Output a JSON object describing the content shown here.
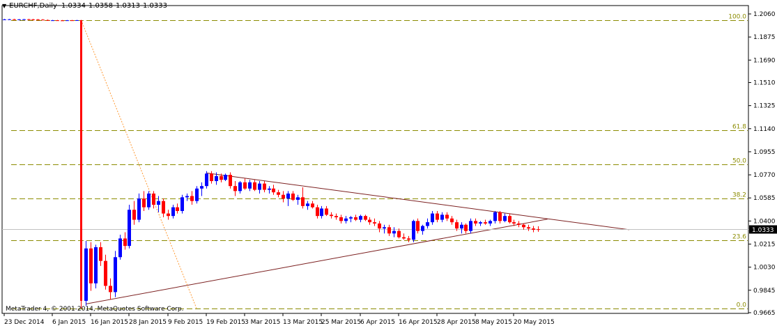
{
  "header": {
    "symbol": "EURCHF,Daily",
    "open": "1.0334",
    "high": "1.0358",
    "low": "1.0313",
    "close": "1.0333"
  },
  "copyright": "MetaTrader 4, © 2001-2014, MetaQuotes Software Corp.",
  "current_price": "1.0333",
  "colors": {
    "bull": "#0000ff",
    "bear": "#ff0000",
    "fib": "#8b8b00",
    "trendline": "#7b1f1f",
    "retrace": "#ff9933",
    "grid": "#000000",
    "current": "#000000"
  },
  "chart_data": {
    "type": "candlestick",
    "symbol": "EURCHF",
    "timeframe": "Daily",
    "ylim": [
      0.9665,
      1.206
    ],
    "y_ticks": [
      "1.2060",
      "1.1875",
      "1.1690",
      "1.1510",
      "1.1325",
      "1.1140",
      "1.0955",
      "1.0770",
      "1.0585",
      "1.0400",
      "1.0215",
      "1.0030",
      "0.9845",
      "0.9665"
    ],
    "x_ticks": [
      "23 Dec 2014",
      "6 Jan 2015",
      "16 Jan 2015",
      "28 Jan 2015",
      "9 Feb 2015",
      "19 Feb 2015",
      "3 Mar 2015",
      "13 Mar 2015",
      "25 Mar 2015",
      "6 Apr 2015",
      "16 Apr 2015",
      "28 Apr 2015",
      "8 May 2015",
      "20 May 2015"
    ],
    "fibonacci": {
      "high": 1.201,
      "low": 0.97,
      "levels": [
        {
          "label": "100.0",
          "value": 1.201
        },
        {
          "label": "61.8",
          "value": 1.1127
        },
        {
          "label": "50.0",
          "value": 1.0855
        },
        {
          "label": "38.2",
          "value": 1.0583
        },
        {
          "label": "23.6",
          "value": 1.0245
        },
        {
          "label": "0.0",
          "value": 0.97
        }
      ]
    },
    "candles": [
      {
        "o": 1.2015,
        "h": 1.202,
        "l": 1.2012,
        "c": 1.2016
      },
      {
        "o": 1.2016,
        "h": 1.202,
        "l": 1.2013,
        "c": 1.2017
      },
      {
        "o": 1.2017,
        "h": 1.2021,
        "l": 1.2014,
        "c": 1.2015
      },
      {
        "o": 1.2015,
        "h": 1.2019,
        "l": 1.2012,
        "c": 1.2016
      },
      {
        "o": 1.2016,
        "h": 1.202,
        "l": 1.2013,
        "c": 1.2017
      },
      {
        "o": 1.2017,
        "h": 1.2021,
        "l": 1.2014,
        "c": 1.2016
      },
      {
        "o": 1.2016,
        "h": 1.202,
        "l": 1.2012,
        "c": 1.2015
      },
      {
        "o": 1.2015,
        "h": 1.2019,
        "l": 1.2011,
        "c": 1.2014
      },
      {
        "o": 1.2014,
        "h": 1.2018,
        "l": 1.2009,
        "c": 1.2011
      },
      {
        "o": 1.2011,
        "h": 1.2015,
        "l": 1.2006,
        "c": 1.2008
      },
      {
        "o": 1.2008,
        "h": 1.2012,
        "l": 1.2005,
        "c": 1.2009
      },
      {
        "o": 1.2009,
        "h": 1.2012,
        "l": 1.2006,
        "c": 1.2008
      },
      {
        "o": 1.2008,
        "h": 1.2011,
        "l": 1.2005,
        "c": 1.2007
      },
      {
        "o": 1.2007,
        "h": 1.2011,
        "l": 1.2005,
        "c": 1.2009
      },
      {
        "o": 1.2009,
        "h": 1.2012,
        "l": 1.2006,
        "c": 1.2008
      },
      {
        "o": 1.2008,
        "h": 1.2012,
        "l": 1.2005,
        "c": 1.201
      },
      {
        "o": 1.201,
        "h": 1.2012,
        "l": 0.97,
        "c": 0.976
      },
      {
        "o": 0.976,
        "h": 1.024,
        "l": 0.972,
        "c": 1.018
      },
      {
        "o": 1.018,
        "h": 1.023,
        "l": 0.984,
        "c": 0.99
      },
      {
        "o": 0.99,
        "h": 1.021,
        "l": 0.986,
        "c": 1.019
      },
      {
        "o": 1.019,
        "h": 1.023,
        "l": 1.004,
        "c": 1.008
      },
      {
        "o": 1.008,
        "h": 1.013,
        "l": 0.985,
        "c": 0.988
      },
      {
        "o": 0.988,
        "h": 0.994,
        "l": 0.977,
        "c": 0.983
      },
      {
        "o": 0.983,
        "h": 1.016,
        "l": 0.979,
        "c": 1.011
      },
      {
        "o": 1.011,
        "h": 1.029,
        "l": 1.009,
        "c": 1.026
      },
      {
        "o": 1.026,
        "h": 1.031,
        "l": 1.017,
        "c": 1.02
      },
      {
        "o": 1.02,
        "h": 1.053,
        "l": 1.018,
        "c": 1.049
      },
      {
        "o": 1.049,
        "h": 1.056,
        "l": 1.037,
        "c": 1.041
      },
      {
        "o": 1.041,
        "h": 1.062,
        "l": 1.039,
        "c": 1.058
      },
      {
        "o": 1.058,
        "h": 1.064,
        "l": 1.048,
        "c": 1.051
      },
      {
        "o": 1.051,
        "h": 1.064,
        "l": 1.049,
        "c": 1.062
      },
      {
        "o": 1.062,
        "h": 1.064,
        "l": 1.05,
        "c": 1.053
      },
      {
        "o": 1.053,
        "h": 1.06,
        "l": 1.047,
        "c": 1.056
      },
      {
        "o": 1.056,
        "h": 1.058,
        "l": 1.043,
        "c": 1.046
      },
      {
        "o": 1.046,
        "h": 1.049,
        "l": 1.041,
        "c": 1.044
      },
      {
        "o": 1.044,
        "h": 1.053,
        "l": 1.042,
        "c": 1.051
      },
      {
        "o": 1.051,
        "h": 1.054,
        "l": 1.046,
        "c": 1.048
      },
      {
        "o": 1.048,
        "h": 1.061,
        "l": 1.046,
        "c": 1.059
      },
      {
        "o": 1.059,
        "h": 1.062,
        "l": 1.056,
        "c": 1.06
      },
      {
        "o": 1.06,
        "h": 1.064,
        "l": 1.053,
        "c": 1.056
      },
      {
        "o": 1.056,
        "h": 1.068,
        "l": 1.054,
        "c": 1.066
      },
      {
        "o": 1.066,
        "h": 1.071,
        "l": 1.06,
        "c": 1.068
      },
      {
        "o": 1.068,
        "h": 1.08,
        "l": 1.066,
        "c": 1.078
      },
      {
        "o": 1.078,
        "h": 1.08,
        "l": 1.07,
        "c": 1.072
      },
      {
        "o": 1.072,
        "h": 1.079,
        "l": 1.069,
        "c": 1.076
      },
      {
        "o": 1.076,
        "h": 1.078,
        "l": 1.071,
        "c": 1.073
      },
      {
        "o": 1.073,
        "h": 1.078,
        "l": 1.072,
        "c": 1.077
      },
      {
        "o": 1.077,
        "h": 1.079,
        "l": 1.066,
        "c": 1.068
      },
      {
        "o": 1.068,
        "h": 1.072,
        "l": 1.06,
        "c": 1.064
      },
      {
        "o": 1.064,
        "h": 1.072,
        "l": 1.062,
        "c": 1.071
      },
      {
        "o": 1.071,
        "h": 1.074,
        "l": 1.065,
        "c": 1.066
      },
      {
        "o": 1.066,
        "h": 1.073,
        "l": 1.064,
        "c": 1.071
      },
      {
        "o": 1.071,
        "h": 1.073,
        "l": 1.064,
        "c": 1.065
      },
      {
        "o": 1.065,
        "h": 1.072,
        "l": 1.062,
        "c": 1.07
      },
      {
        "o": 1.07,
        "h": 1.072,
        "l": 1.063,
        "c": 1.065
      },
      {
        "o": 1.065,
        "h": 1.068,
        "l": 1.062,
        "c": 1.066
      },
      {
        "o": 1.066,
        "h": 1.069,
        "l": 1.061,
        "c": 1.063
      },
      {
        "o": 1.063,
        "h": 1.065,
        "l": 1.059,
        "c": 1.061
      },
      {
        "o": 1.061,
        "h": 1.064,
        "l": 1.055,
        "c": 1.058
      },
      {
        "o": 1.058,
        "h": 1.064,
        "l": 1.052,
        "c": 1.062
      },
      {
        "o": 1.062,
        "h": 1.064,
        "l": 1.056,
        "c": 1.057
      },
      {
        "o": 1.057,
        "h": 1.061,
        "l": 1.053,
        "c": 1.059
      },
      {
        "o": 1.059,
        "h": 1.067,
        "l": 1.05,
        "c": 1.052
      },
      {
        "o": 1.052,
        "h": 1.056,
        "l": 1.049,
        "c": 1.054
      },
      {
        "o": 1.054,
        "h": 1.056,
        "l": 1.05,
        "c": 1.051
      },
      {
        "o": 1.051,
        "h": 1.053,
        "l": 1.042,
        "c": 1.044
      },
      {
        "o": 1.044,
        "h": 1.052,
        "l": 1.042,
        "c": 1.05
      },
      {
        "o": 1.05,
        "h": 1.052,
        "l": 1.044,
        "c": 1.045
      },
      {
        "o": 1.045,
        "h": 1.047,
        "l": 1.042,
        "c": 1.044
      },
      {
        "o": 1.044,
        "h": 1.046,
        "l": 1.041,
        "c": 1.043
      },
      {
        "o": 1.043,
        "h": 1.045,
        "l": 1.038,
        "c": 1.04
      },
      {
        "o": 1.04,
        "h": 1.044,
        "l": 1.038,
        "c": 1.042
      },
      {
        "o": 1.042,
        "h": 1.044,
        "l": 1.039,
        "c": 1.043
      },
      {
        "o": 1.043,
        "h": 1.045,
        "l": 1.04,
        "c": 1.041
      },
      {
        "o": 1.041,
        "h": 1.045,
        "l": 1.039,
        "c": 1.044
      },
      {
        "o": 1.044,
        "h": 1.045,
        "l": 1.04,
        "c": 1.041
      },
      {
        "o": 1.041,
        "h": 1.043,
        "l": 1.037,
        "c": 1.039
      },
      {
        "o": 1.039,
        "h": 1.042,
        "l": 1.036,
        "c": 1.038
      },
      {
        "o": 1.038,
        "h": 1.04,
        "l": 1.031,
        "c": 1.034
      },
      {
        "o": 1.034,
        "h": 1.037,
        "l": 1.03,
        "c": 1.035
      },
      {
        "o": 1.035,
        "h": 1.037,
        "l": 1.028,
        "c": 1.03
      },
      {
        "o": 1.03,
        "h": 1.035,
        "l": 1.027,
        "c": 1.032
      },
      {
        "o": 1.032,
        "h": 1.034,
        "l": 1.026,
        "c": 1.027
      },
      {
        "o": 1.027,
        "h": 1.03,
        "l": 1.025,
        "c": 1.026
      },
      {
        "o": 1.026,
        "h": 1.028,
        "l": 1.023,
        "c": 1.025
      },
      {
        "o": 1.025,
        "h": 1.041,
        "l": 1.023,
        "c": 1.04
      },
      {
        "o": 1.04,
        "h": 1.042,
        "l": 1.03,
        "c": 1.032
      },
      {
        "o": 1.032,
        "h": 1.037,
        "l": 1.029,
        "c": 1.036
      },
      {
        "o": 1.036,
        "h": 1.042,
        "l": 1.034,
        "c": 1.039
      },
      {
        "o": 1.039,
        "h": 1.048,
        "l": 1.037,
        "c": 1.046
      },
      {
        "o": 1.046,
        "h": 1.048,
        "l": 1.039,
        "c": 1.041
      },
      {
        "o": 1.041,
        "h": 1.047,
        "l": 1.039,
        "c": 1.045
      },
      {
        "o": 1.045,
        "h": 1.047,
        "l": 1.04,
        "c": 1.042
      },
      {
        "o": 1.042,
        "h": 1.044,
        "l": 1.037,
        "c": 1.039
      },
      {
        "o": 1.039,
        "h": 1.041,
        "l": 1.032,
        "c": 1.034
      },
      {
        "o": 1.034,
        "h": 1.039,
        "l": 1.03,
        "c": 1.037
      },
      {
        "o": 1.037,
        "h": 1.038,
        "l": 1.03,
        "c": 1.032
      },
      {
        "o": 1.032,
        "h": 1.042,
        "l": 1.03,
        "c": 1.04
      },
      {
        "o": 1.04,
        "h": 1.042,
        "l": 1.036,
        "c": 1.038
      },
      {
        "o": 1.038,
        "h": 1.04,
        "l": 1.036,
        "c": 1.039
      },
      {
        "o": 1.039,
        "h": 1.041,
        "l": 1.037,
        "c": 1.038
      },
      {
        "o": 1.038,
        "h": 1.041,
        "l": 1.036,
        "c": 1.04
      },
      {
        "o": 1.04,
        "h": 1.048,
        "l": 1.038,
        "c": 1.047
      },
      {
        "o": 1.047,
        "h": 1.048,
        "l": 1.038,
        "c": 1.04
      },
      {
        "o": 1.04,
        "h": 1.046,
        "l": 1.039,
        "c": 1.044
      },
      {
        "o": 1.044,
        "h": 1.046,
        "l": 1.038,
        "c": 1.039
      },
      {
        "o": 1.039,
        "h": 1.041,
        "l": 1.036,
        "c": 1.038
      },
      {
        "o": 1.038,
        "h": 1.04,
        "l": 1.035,
        "c": 1.037
      },
      {
        "o": 1.037,
        "h": 1.038,
        "l": 1.033,
        "c": 1.035
      },
      {
        "o": 1.035,
        "h": 1.037,
        "l": 1.032,
        "c": 1.034
      },
      {
        "o": 1.034,
        "h": 1.036,
        "l": 1.031,
        "c": 1.033
      },
      {
        "o": 1.0334,
        "h": 1.0358,
        "l": 1.0313,
        "c": 1.0333
      }
    ],
    "trendlines": [
      {
        "name": "resistance",
        "from": {
          "i": 42,
          "p": 1.0785
        },
        "to": {
          "i": 130,
          "p": 1.033
        }
      },
      {
        "name": "support",
        "from": {
          "i": 17,
          "p": 0.9735
        },
        "to": {
          "i": 113,
          "p": 1.0415
        }
      },
      {
        "name": "retracement",
        "from": {
          "i": 16,
          "p": 1.201
        },
        "to": {
          "i": 40,
          "p": 0.97
        }
      }
    ]
  }
}
